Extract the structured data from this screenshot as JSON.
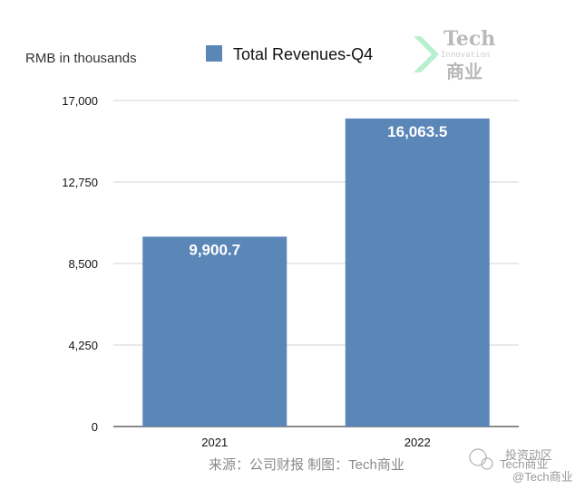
{
  "chart_data": {
    "type": "bar",
    "title": "",
    "ylabel": "RMB in thousands",
    "xlabel": "",
    "categories": [
      "2021",
      "2022"
    ],
    "series": [
      {
        "name": "Total Revenues-Q4",
        "values": [
          9900.7,
          16063.5
        ],
        "labels": [
          "9,900.7",
          "16,063.5"
        ]
      }
    ],
    "ylim": [
      0,
      17000
    ],
    "yticks": [
      0,
      4250,
      8500,
      12750,
      17000
    ],
    "ytick_labels": [
      "0",
      "4,250",
      "8,500",
      "12,750",
      "17,000"
    ],
    "grid": true,
    "legend": "top-center",
    "bar_color": "#5b86b8"
  },
  "source_note": "来源：公司财报 制图：Tech商业",
  "logo": {
    "title": "Tech",
    "subtitle": "Innovation",
    "cn": "商业",
    "accent": "#b8f0cf"
  },
  "watermark": {
    "community": "投资动区",
    "handle": "@Tech商业",
    "name": "Tech商业"
  }
}
